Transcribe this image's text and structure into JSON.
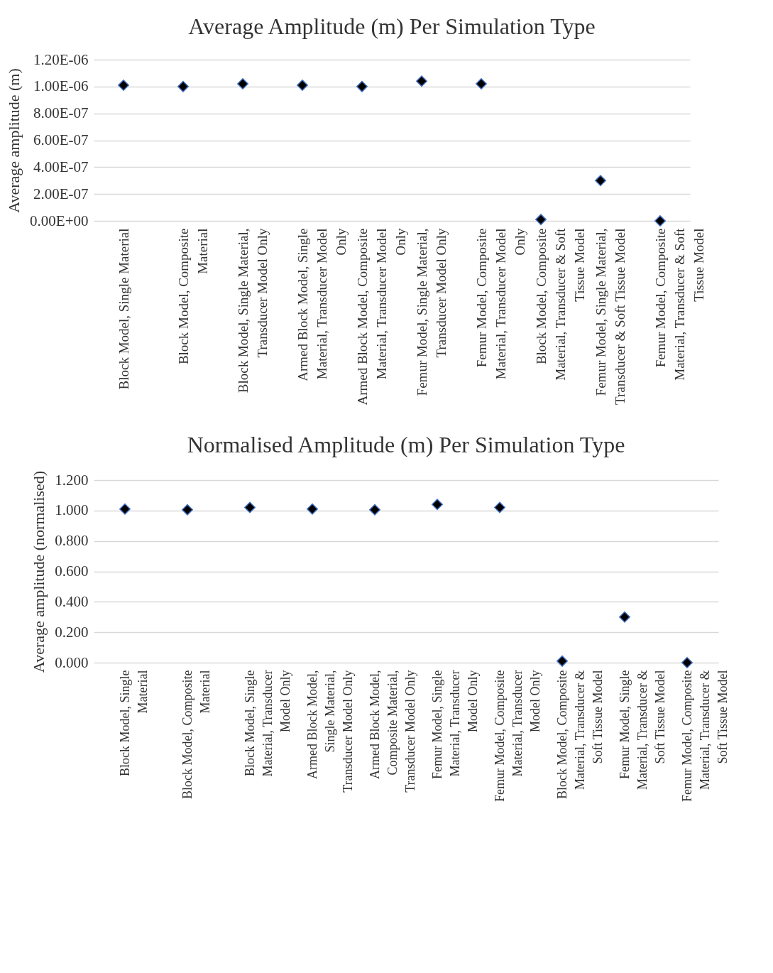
{
  "chart_data": [
    {
      "type": "scatter",
      "title": "Average Amplitude (m) Per Simulation Type",
      "ylabel": "Average amplitude (m)",
      "categories": [
        "Block Model, Single Material",
        "Block Model, Composite Material",
        "Block Model, Single Material, Transducer Model Only",
        "Armed Block Model, Single Material, Transducer Model Only",
        "Armed Block Model, Composite Material, Transducer Model Only",
        "Femur Model, Single Material, Transducer Model Only",
        "Femur Model, Composite Material, Transducer Model Only",
        "Block Model, Composite Material, Transducer & Soft Tissue Model",
        "Femur Model, Single Material, Transducer & Soft Tissue Model",
        "Femur Model, Composite Material, Transducer & Soft Tissue Model"
      ],
      "series": [
        {
          "color": "#000000",
          "values": [
            1.01e-06,
            1e-06,
            1.02e-06,
            1.01e-06,
            1e-06,
            1.04e-06,
            1.02e-06,
            1e-08,
            3e-07,
            0
          ]
        }
      ],
      "ylim": [
        0,
        1.2e-06
      ],
      "yticks": [
        {
          "value": 0,
          "label": "0.00E+00"
        },
        {
          "value": 2e-07,
          "label": "2.00E-07"
        },
        {
          "value": 4e-07,
          "label": "4.00E-07"
        },
        {
          "value": 6e-07,
          "label": "6.00E-07"
        },
        {
          "value": 8e-07,
          "label": "8.00E-07"
        },
        {
          "value": 1e-06,
          "label": "1.00E-06"
        },
        {
          "value": 1.2e-06,
          "label": "1.20E-06"
        }
      ],
      "grid": "y",
      "marker": "diamond"
    },
    {
      "type": "scatter",
      "title": "Normalised Amplitude (m) Per Simulation Type",
      "ylabel": "Average amplitude (normalised)",
      "categories": [
        "Block Model, Single Material",
        "Block Model, Composite Material",
        "Block Model, Single Material, Transducer Model Only",
        "Armed Block Model, Single Material, Transducer Model Only",
        "Armed Block Model, Composite Material, Transducer Model Only",
        "Femur Model, Single Material, Transducer Model Only",
        "Femur Model, Composite Material, Transducer Model Only",
        "Block Model, Composite Material, Transducer & Soft Tissue Model",
        "Femur Model, Single Material, Transducer & Soft Tissue Model",
        "Femur Model, Composite Material, Transducer & Soft Tissue Model"
      ],
      "series": [
        {
          "color": "#000000",
          "values": [
            1.01,
            1.005,
            1.02,
            1.01,
            1.005,
            1.04,
            1.02,
            0.01,
            0.3,
            0
          ]
        }
      ],
      "ylim": [
        0,
        1.2
      ],
      "yticks": [
        {
          "value": 0,
          "label": "0.000"
        },
        {
          "value": 0.2,
          "label": "0.200"
        },
        {
          "value": 0.4,
          "label": "0.400"
        },
        {
          "value": 0.6,
          "label": "0.600"
        },
        {
          "value": 0.8,
          "label": "0.800"
        },
        {
          "value": 1,
          "label": "1.000"
        },
        {
          "value": 1.2,
          "label": "1.200"
        }
      ],
      "grid": "y",
      "marker": "diamond"
    }
  ]
}
